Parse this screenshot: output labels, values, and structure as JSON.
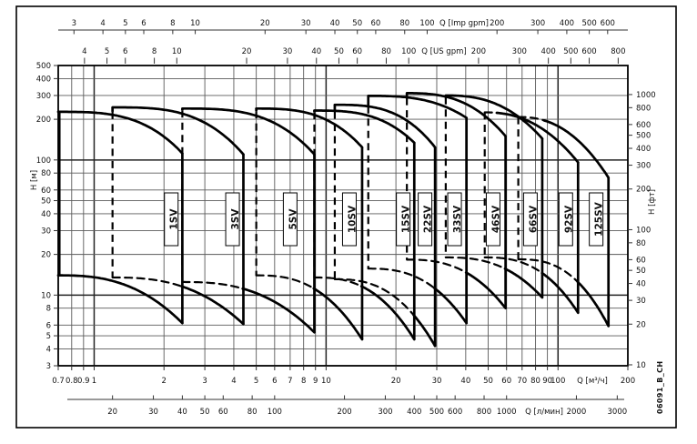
{
  "doc_code": "06091_B_CH",
  "colors": {
    "curve": "#000000",
    "grid_minor": "#5a5a5a",
    "grid_major": "#222222",
    "frame": "#000000",
    "label_box_bg": "#ffffff",
    "text": "#111111"
  },
  "chart_data": {
    "type": "line",
    "subtype": "pump-range-envelope-chart",
    "title": "",
    "x_range_m3h": [
      0.7,
      200
    ],
    "y_range_m": [
      3,
      500
    ],
    "grid": "on",
    "grid_x_m3h": [
      0.8,
      0.9,
      1,
      2,
      3,
      4,
      5,
      6,
      7,
      8,
      9,
      10,
      20,
      30,
      40,
      50,
      60,
      70,
      80,
      90,
      100
    ],
    "grid_x_major": [
      1,
      10,
      100
    ],
    "grid_y_m": [
      4,
      5,
      6,
      8,
      10,
      20,
      30,
      40,
      50,
      60,
      80,
      100,
      200,
      300,
      400,
      500
    ],
    "grid_y_major": [
      10,
      100
    ],
    "axes": {
      "imp_gpm": {
        "label": "Q [Imp gpm]",
        "units_per_m3h": 3.6662,
        "ticks": [
          3,
          4,
          5,
          6,
          8,
          10,
          20,
          30,
          40,
          50,
          60,
          80,
          100,
          200,
          300,
          400,
          500,
          600
        ]
      },
      "us_gpm": {
        "label": "Q [US gpm]",
        "units_per_m3h": 4.4029,
        "ticks": [
          4,
          5,
          6,
          8,
          10,
          20,
          30,
          40,
          50,
          60,
          80,
          100,
          200,
          300,
          400,
          500,
          600,
          800
        ]
      },
      "m3h": {
        "label": "Q [м³/ч]",
        "units_per_m3h": 1,
        "ticks": [
          0.7,
          0.8,
          0.9,
          1,
          2,
          3,
          4,
          5,
          6,
          7,
          8,
          9,
          10,
          20,
          30,
          40,
          50,
          60,
          70,
          80,
          90,
          100,
          200
        ]
      },
      "l_min": {
        "label": "Q [л/мин]",
        "units_per_m3h": 16.667,
        "ticks": [
          20,
          30,
          40,
          50,
          60,
          80,
          100,
          200,
          300,
          400,
          500,
          600,
          800,
          1000,
          2000,
          3000
        ]
      },
      "head_m": {
        "label": "H [м]",
        "ticks": [
          500,
          400,
          300,
          200,
          100,
          80,
          60,
          50,
          40,
          30,
          20,
          10,
          8,
          6,
          5,
          4,
          3
        ]
      },
      "head_ft": {
        "label": "H [фт]",
        "units_per_m": 3.2808,
        "ticks": [
          1000,
          800,
          600,
          500,
          400,
          300,
          200,
          100,
          80,
          60,
          50,
          40,
          30,
          20,
          10
        ]
      }
    },
    "series": [
      {
        "name": "1SV",
        "q_min": 0.7,
        "q_max": 2.4,
        "h_top_l": 227,
        "h_top_r": 112,
        "h_bot_l": 14.0,
        "h_bot_r": 6.2,
        "p_top": 3.2,
        "p_bot": 2.6,
        "label_q": 2.15
      },
      {
        "name": "3SV",
        "q_min": 1.2,
        "q_max": 4.4,
        "h_top_l": 245,
        "h_top_r": 110,
        "h_bot_l": 13.5,
        "h_bot_r": 6.1,
        "p_top": 3.2,
        "p_bot": 2.6,
        "bot_dash_until": 2.4,
        "h_step": 227,
        "label_q": 3.95
      },
      {
        "name": "5SV",
        "q_min": 2.4,
        "q_max": 8.9,
        "h_top_l": 240,
        "h_top_r": 110,
        "h_bot_l": 12.5,
        "h_bot_r": 5.3,
        "p_top": 3.2,
        "p_bot": 2.6,
        "bot_dash_until": 4.4,
        "h_step": 233,
        "label_q": 7.0
      },
      {
        "name": "10SV",
        "q_min": 5.0,
        "q_max": 14.3,
        "h_top_l": 240,
        "h_top_r": 124,
        "h_bot_l": 14.0,
        "h_bot_r": 4.7,
        "p_top": 3.0,
        "p_bot": 2.6,
        "bot_dash_until": 8.9,
        "h_step": 230,
        "label_q": 12.6
      },
      {
        "name": "15SV",
        "q_min": 8.9,
        "q_max": 24.0,
        "h_top_l": 232,
        "h_top_r": 134,
        "h_bot_l": 13.5,
        "h_bot_r": 4.7,
        "p_top": 3.0,
        "p_bot": 2.6,
        "bot_dash_until": 14.3,
        "h_step": 226,
        "label_q": 21.5
      },
      {
        "name": "22SV",
        "q_min": 10.9,
        "q_max": 29.5,
        "h_top_l": 256,
        "h_top_r": 124,
        "h_bot_l": 13.1,
        "h_bot_r": 4.2,
        "p_top": 3.0,
        "p_bot": 2.6,
        "bot_dash_until": 24.0,
        "h_step": 228,
        "label_q": 26.7
      },
      {
        "name": "33SV",
        "q_min": 15.2,
        "q_max": 40.3,
        "h_top_l": 298,
        "h_top_r": 205,
        "h_bot_l": 15.7,
        "h_bot_r": 6.2,
        "p_top": 2.9,
        "p_bot": 2.6,
        "bot_dash_until": 29.5,
        "h_step": 250,
        "label_q": 35.8
      },
      {
        "name": "46SV",
        "q_min": 22.3,
        "q_max": 59.4,
        "h_top_l": 312,
        "h_top_r": 150,
        "h_bot_l": 18.3,
        "h_bot_r": 8.0,
        "p_top": 2.7,
        "p_bot": 2.6,
        "bot_dash_until": 40.3,
        "h_step": 288,
        "label_q": 52.5
      },
      {
        "name": "66SV",
        "q_min": 32.8,
        "q_max": 85.5,
        "h_top_l": 300,
        "h_top_r": 144,
        "h_bot_l": 19.0,
        "h_bot_r": 9.6,
        "p_top": 2.5,
        "p_bot": 2.6,
        "bot_dash_until": 59.4,
        "h_step": 292,
        "label_q": 76
      },
      {
        "name": "92SV",
        "q_min": 48.3,
        "q_max": 122,
        "h_top_l": 225,
        "h_top_r": 96,
        "h_bot_l": 19.0,
        "h_bot_r": 7.4,
        "p_top": 2.3,
        "p_bot": 2.6,
        "bot_dash_until": 85.5,
        "top_dash_until": 55,
        "label_q": 108
      },
      {
        "name": "125SV",
        "q_min": 67.4,
        "q_max": 165,
        "h_top_l": 208,
        "h_top_r": 74,
        "h_bot_l": 18.4,
        "h_bot_r": 5.9,
        "p_top": 2.3,
        "p_bot": 2.6,
        "bot_dash_until": 122,
        "top_dash_until": 88,
        "label_q": 146
      }
    ]
  }
}
